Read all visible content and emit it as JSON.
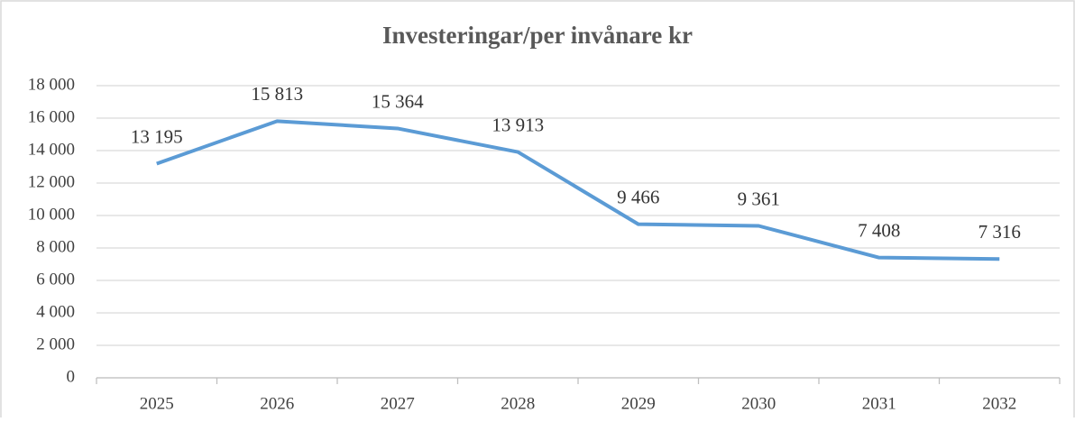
{
  "chart_data": {
    "type": "line",
    "title": "Investeringar/per invånare kr",
    "categories": [
      "2025",
      "2026",
      "2027",
      "2028",
      "2029",
      "2030",
      "2031",
      "2032"
    ],
    "values": [
      13195,
      15813,
      15364,
      13913,
      9466,
      9361,
      7408,
      7316
    ],
    "value_labels": [
      "13 195",
      "15 813",
      "15 364",
      "13 913",
      "9 466",
      "9 361",
      "7 408",
      "7 316"
    ],
    "color": "#5b9bd5",
    "ylim": [
      0,
      18000
    ],
    "yticks": [
      0,
      {
        "value": 2000,
        "label": "2 000"
      },
      {
        "value": 4000,
        "label": "4 000"
      },
      {
        "value": 6000,
        "label": "6 000"
      },
      {
        "value": 8000,
        "label": "8 000"
      },
      {
        "value": 10000,
        "label": "10 000"
      },
      {
        "value": 12000,
        "label": "12 000"
      },
      {
        "value": 14000,
        "label": "14 000"
      },
      {
        "value": 16000,
        "label": "16 000"
      },
      {
        "value": 18000,
        "label": "18 000"
      }
    ],
    "grid": true
  }
}
